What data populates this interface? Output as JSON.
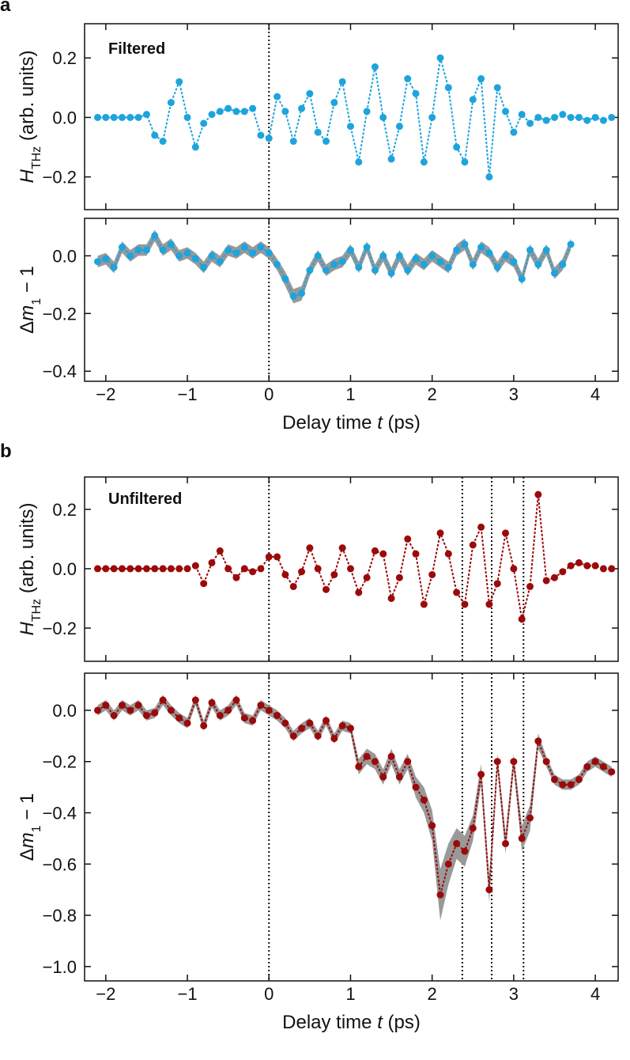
{
  "chart_data": [
    {
      "type": "line",
      "panel": "a",
      "xlim": [
        -2.26,
        4.28
      ],
      "ylim": [
        -0.31,
        0.315
      ],
      "yticks": [
        0.2,
        {
          "value": 0,
          "label": "0.0"
        },
        {
          "value": -0.2,
          "label": "−0.2"
        }
      ],
      "ylabel": [
        "H",
        "THz",
        " (arb. units)"
      ],
      "vlines": [
        0
      ],
      "x": [
        -2.1,
        -2,
        -1.9,
        -1.8,
        -1.7,
        -1.6,
        -1.5,
        -1.4,
        -1.3,
        -1.2,
        -1.1,
        -1,
        -0.9,
        -0.8,
        -0.7,
        -0.6,
        -0.5,
        -0.4,
        -0.3,
        -0.2,
        -0.1,
        0,
        0.1,
        0.2,
        0.3,
        0.4,
        0.5,
        0.6,
        0.7,
        0.8,
        0.9,
        1,
        1.1,
        1.2,
        1.3,
        1.4,
        1.5,
        1.6,
        1.7,
        1.8,
        1.9,
        2,
        2.1,
        2.2,
        2.3,
        2.4,
        2.5,
        2.6,
        2.7,
        2.8,
        2.9,
        3,
        3.1,
        3.2,
        3.3,
        3.4,
        3.5,
        3.6,
        3.7,
        3.8,
        3.9,
        4,
        4.1,
        4.2
      ],
      "series": [
        {
          "name": "Filtered",
          "color": "#1ea4dc",
          "values": [
            0,
            0,
            0,
            0,
            0,
            0,
            0.01,
            -0.06,
            -0.08,
            0.05,
            0.12,
            0,
            -0.1,
            -0.02,
            0.01,
            0.02,
            0.03,
            0.02,
            0.02,
            0.03,
            -0.06,
            -0.07,
            0.07,
            0.02,
            -0.08,
            0.03,
            0.08,
            -0.05,
            -0.08,
            0.05,
            0.12,
            -0.03,
            -0.15,
            0.02,
            0.17,
            0,
            -0.14,
            -0.03,
            0.13,
            0.08,
            -0.15,
            0,
            0.2,
            0.1,
            -0.1,
            -0.15,
            0.06,
            0.13,
            -0.2,
            0.1,
            0.02,
            -0.05,
            0.01,
            -0.02,
            0,
            -0.01,
            0,
            0.01,
            0,
            0,
            -0.01,
            0,
            -0.01,
            0
          ]
        }
      ]
    },
    {
      "type": "line",
      "xlim": [
        -2.26,
        4.28
      ],
      "ylim": [
        -0.435,
        0.13
      ],
      "yticks": [
        {
          "value": 0,
          "label": "0.0"
        },
        {
          "value": -0.2,
          "label": "−0.2"
        },
        {
          "value": -0.4,
          "label": "−0.4"
        }
      ],
      "xticks": [
        {
          "value": -2,
          "label": "−2"
        },
        {
          "value": -1,
          "label": "−1"
        },
        0,
        1,
        2,
        3,
        4
      ],
      "ylabel": [
        "Δ",
        "m",
        "1",
        " − 1"
      ],
      "xlabel": [
        "Delay time ",
        "t",
        " (ps)"
      ],
      "vlines": [
        0
      ],
      "x": [
        -2.1,
        -2,
        -1.9,
        -1.8,
        -1.7,
        -1.6,
        -1.5,
        -1.4,
        -1.3,
        -1.2,
        -1.1,
        -1,
        -0.9,
        -0.8,
        -0.7,
        -0.6,
        -0.5,
        -0.4,
        -0.3,
        -0.2,
        -0.1,
        0,
        0.1,
        0.2,
        0.3,
        0.4,
        0.5,
        0.6,
        0.7,
        0.8,
        0.9,
        1,
        1.1,
        1.2,
        1.3,
        1.4,
        1.5,
        1.6,
        1.7,
        1.8,
        1.9,
        2,
        2.1,
        2.2,
        2.3,
        2.4,
        2.5,
        2.6,
        2.7,
        2.8,
        2.9,
        3,
        3.1,
        3.2,
        3.3,
        3.4,
        3.5,
        3.6,
        3.7
      ],
      "series": [
        {
          "color": "#1ea4dc",
          "band_color": "#999999",
          "values": [
            -0.02,
            -0.01,
            -0.04,
            0.03,
            0,
            0.02,
            0.02,
            0.07,
            0.02,
            0.04,
            0,
            0.01,
            -0.01,
            -0.04,
            0,
            -0.02,
            0.02,
            0.01,
            0.03,
            0.01,
            0.03,
            0.01,
            -0.03,
            -0.08,
            -0.14,
            -0.13,
            -0.05,
            0,
            -0.05,
            -0.03,
            -0.02,
            0.02,
            -0.04,
            0.03,
            -0.05,
            0,
            -0.06,
            0,
            -0.05,
            -0.01,
            -0.03,
            0,
            -0.02,
            -0.04,
            0.02,
            0.04,
            -0.03,
            0.03,
            0.01,
            -0.04,
            0,
            -0.02,
            -0.08,
            0.02,
            -0.03,
            0.02,
            -0.06,
            -0.03,
            0.04
          ],
          "errors": [
            0.02,
            0.02,
            0.02,
            0.02,
            0.02,
            0.02,
            0.02,
            0.02,
            0.02,
            0.02,
            0.02,
            0.02,
            0.02,
            0.02,
            0.02,
            0.02,
            0.02,
            0.02,
            0.02,
            0.02,
            0.02,
            0.02,
            0.02,
            0.025,
            0.025,
            0.025,
            0.02,
            0.02,
            0.02,
            0.02,
            0.02,
            0.02,
            0.02,
            0.02,
            0.02,
            0.02,
            0.02,
            0.02,
            0.02,
            0.02,
            0.02,
            0.02,
            0.02,
            0.02,
            0.02,
            0.02,
            0.02,
            0.02,
            0.02,
            0.02,
            0.02,
            0.02,
            0.02,
            0.02,
            0.02,
            0.02,
            0.02,
            0.02,
            0.02
          ]
        }
      ]
    },
    {
      "type": "line",
      "panel": "b",
      "xlim": [
        -2.26,
        4.28
      ],
      "ylim": [
        -0.312,
        0.309
      ],
      "yticks": [
        0.2,
        {
          "value": 0,
          "label": "0.0"
        },
        {
          "value": -0.2,
          "label": "−0.2"
        }
      ],
      "ylabel": [
        "H",
        "THz",
        " (arb. units)"
      ],
      "vlines": [
        0,
        2.37,
        2.73,
        3.12
      ],
      "x": [
        -2.1,
        -2,
        -1.9,
        -1.8,
        -1.7,
        -1.6,
        -1.5,
        -1.4,
        -1.3,
        -1.2,
        -1.1,
        -1,
        -0.9,
        -0.8,
        -0.7,
        -0.6,
        -0.5,
        -0.4,
        -0.3,
        -0.2,
        -0.1,
        0,
        0.1,
        0.2,
        0.3,
        0.4,
        0.5,
        0.6,
        0.7,
        0.8,
        0.9,
        1,
        1.1,
        1.2,
        1.3,
        1.4,
        1.5,
        1.6,
        1.7,
        1.8,
        1.9,
        2,
        2.1,
        2.2,
        2.3,
        2.4,
        2.5,
        2.6,
        2.7,
        2.8,
        2.9,
        3,
        3.1,
        3.2,
        3.3,
        3.4,
        3.5,
        3.6,
        3.7,
        3.8,
        3.9,
        4,
        4.1,
        4.2
      ],
      "series": [
        {
          "name": "Unfiltered",
          "color": "#9b0a0a",
          "values": [
            0,
            0,
            0,
            0,
            0,
            0,
            0,
            0,
            0,
            0,
            0,
            0,
            0.01,
            -0.05,
            0.02,
            0.06,
            0,
            -0.03,
            0,
            -0.01,
            0,
            0.04,
            0.04,
            -0.02,
            -0.06,
            -0.01,
            0.07,
            0,
            -0.07,
            -0.02,
            0.07,
            0,
            -0.08,
            -0.03,
            0.06,
            0.05,
            -0.1,
            -0.03,
            0.1,
            0.05,
            -0.12,
            -0.02,
            0.12,
            0.05,
            -0.08,
            -0.12,
            0.08,
            0.14,
            -0.12,
            -0.05,
            0.12,
            0,
            -0.17,
            -0.06,
            0.25,
            -0.04,
            -0.03,
            -0.01,
            0.01,
            0.02,
            0.01,
            0.01,
            0,
            0
          ]
        }
      ]
    },
    {
      "type": "line",
      "xlim": [
        -2.26,
        4.28
      ],
      "ylim": [
        -1.056,
        0.145
      ],
      "yticks": [
        {
          "value": 0,
          "label": "0.0"
        },
        {
          "value": -0.2,
          "label": "−0.2"
        },
        {
          "value": -0.4,
          "label": "−0.4"
        },
        {
          "value": -0.6,
          "label": "−0.6"
        },
        {
          "value": -0.8,
          "label": "−0.8"
        },
        {
          "value": -1,
          "label": "−1.0"
        }
      ],
      "xticks": [
        {
          "value": -2,
          "label": "−2"
        },
        {
          "value": -1,
          "label": "−1"
        },
        0,
        1,
        2,
        3,
        4
      ],
      "ylabel": [
        "Δ",
        "m",
        "1",
        " − 1"
      ],
      "xlabel": [
        "Delay time ",
        "t",
        " (ps)"
      ],
      "vlines": [
        0,
        2.37,
        2.73,
        3.12
      ],
      "x": [
        -2.1,
        -2,
        -1.9,
        -1.8,
        -1.7,
        -1.6,
        -1.5,
        -1.4,
        -1.3,
        -1.2,
        -1.1,
        -1,
        -0.9,
        -0.8,
        -0.7,
        -0.6,
        -0.5,
        -0.4,
        -0.3,
        -0.2,
        -0.1,
        0,
        0.1,
        0.2,
        0.3,
        0.4,
        0.5,
        0.6,
        0.7,
        0.8,
        0.9,
        1,
        1.1,
        1.2,
        1.3,
        1.4,
        1.5,
        1.6,
        1.7,
        1.8,
        1.9,
        2,
        2.1,
        2.2,
        2.3,
        2.4,
        2.5,
        2.6,
        2.7,
        2.8,
        2.9,
        3,
        3.1,
        3.2,
        3.3,
        3.4,
        3.5,
        3.6,
        3.7,
        3.8,
        3.9,
        4,
        4.1,
        4.2
      ],
      "series": [
        {
          "color": "#9b0a0a",
          "band_color": "#999999",
          "values": [
            0,
            0.02,
            -0.02,
            0.02,
            0,
            0.02,
            -0.02,
            -0.01,
            0.04,
            0,
            -0.03,
            -0.05,
            0.04,
            -0.06,
            0.03,
            -0.02,
            0,
            0.04,
            -0.03,
            -0.04,
            0.02,
            0,
            -0.02,
            -0.05,
            -0.1,
            -0.07,
            -0.05,
            -0.1,
            -0.04,
            -0.11,
            -0.06,
            -0.07,
            -0.22,
            -0.18,
            -0.2,
            -0.26,
            -0.18,
            -0.26,
            -0.2,
            -0.3,
            -0.35,
            -0.45,
            -0.72,
            -0.6,
            -0.52,
            -0.55,
            -0.46,
            -0.25,
            -0.7,
            -0.2,
            -0.52,
            -0.2,
            -0.5,
            -0.42,
            -0.12,
            -0.2,
            -0.27,
            -0.29,
            -0.29,
            -0.27,
            -0.22,
            -0.2,
            -0.22,
            -0.24
          ],
          "errors": [
            0.02,
            0.02,
            0.02,
            0.02,
            0.02,
            0.02,
            0.02,
            0.02,
            0.02,
            0.02,
            0.02,
            0.02,
            0.02,
            0.02,
            0.02,
            0.02,
            0.02,
            0.02,
            0.02,
            0.02,
            0.02,
            0.02,
            0.02,
            0.02,
            0.02,
            0.02,
            0.02,
            0.02,
            0.02,
            0.02,
            0.02,
            0.02,
            0.03,
            0.03,
            0.03,
            0.03,
            0.03,
            0.03,
            0.03,
            0.04,
            0.05,
            0.06,
            0.1,
            0.08,
            0.06,
            0.06,
            0.05,
            0.04,
            0.05,
            0.03,
            0.04,
            0.03,
            0.05,
            0.05,
            0.03,
            0.02,
            0.02,
            0.02,
            0.02,
            0.02,
            0.02,
            0.02,
            0.02,
            0.02
          ]
        }
      ]
    }
  ]
}
